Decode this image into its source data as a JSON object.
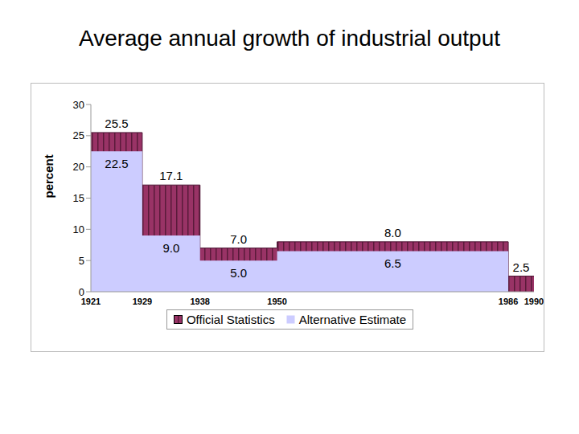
{
  "chart_data": {
    "type": "step_area",
    "title": "Average annual growth of industrial output",
    "y_label": "percent",
    "bins": [
      1921,
      1929,
      1938,
      1950,
      1986,
      1990
    ],
    "series": [
      {
        "name": "Official Statistics",
        "color": "#993366",
        "values": [
          25.5,
          17.1,
          7.0,
          8.0,
          2.5
        ],
        "value_labels": [
          "25.5",
          "17.1",
          "7.0",
          "8.0",
          "2.5"
        ]
      },
      {
        "name": "Alternative Estimate",
        "color": "#ccccff",
        "values": [
          22.5,
          9.0,
          5.0,
          6.5,
          null
        ],
        "value_labels": [
          "22.5",
          "9.0",
          "5.0",
          "6.5",
          null
        ]
      }
    ],
    "xlim": [
      1921,
      1990
    ],
    "xticks": [
      1921,
      1929,
      1938,
      1950,
      1986,
      1990
    ],
    "ylim": [
      0,
      30
    ],
    "yticks": [
      0,
      5,
      10,
      15,
      20,
      25,
      30
    ],
    "grid": false,
    "legend": "bottom",
    "data_labels": true
  }
}
